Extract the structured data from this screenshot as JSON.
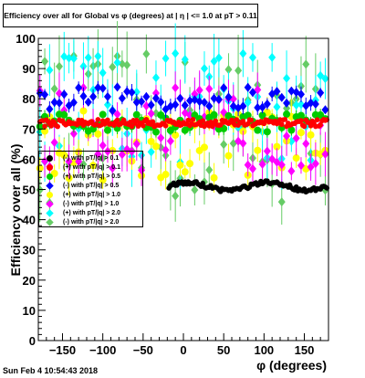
{
  "title": "Efficiency over all for Global vs φ (degrees) at | η | <= 1.0 at pT > 0.11",
  "timestamp": "Sun Feb  4 10:54:43 2018",
  "chart_data": {
    "type": "scatter",
    "title": "Efficiency over all for Global vs φ (degrees) at | η | <= 1.0 at pT > 0.11",
    "xlabel": "φ (degrees)",
    "ylabel": "Efficiency over all (%)",
    "xlim": [
      -180,
      180
    ],
    "ylim": [
      0,
      100
    ],
    "xticks": [
      -150,
      -100,
      -50,
      0,
      50,
      100,
      150
    ],
    "yticks": [
      0,
      10,
      20,
      30,
      40,
      50,
      60,
      70,
      80,
      90,
      100
    ],
    "grid": false,
    "legend_position": "left-middle",
    "series": [
      {
        "name": "(-) with pT/|q| > 0.1",
        "color": "#000000",
        "marker": "circle",
        "band": [
          -20,
          180
        ],
        "level": 51,
        "spread": 1.5,
        "err": 0.5
      },
      {
        "name": "(+) with pT/|q| > 0.1",
        "color": "#ff0000",
        "marker": "circle",
        "band": [
          -180,
          180
        ],
        "level": 72,
        "spread": 1.2,
        "err": 0.5
      },
      {
        "name": "(+) with pT/|q| > 0.5",
        "color": "#00cc00",
        "marker": "circle",
        "band": [
          -180,
          180
        ],
        "level": 72,
        "spread": 3,
        "err": 1.5
      },
      {
        "name": "(-) with pT/|q| > 0.5",
        "color": "#0000ff",
        "marker": "diamond",
        "band": [
          -180,
          180
        ],
        "level": 80,
        "spread": 4,
        "err": 2
      },
      {
        "name": "(+) with pT/|q| > 1.0",
        "color": "#ffff00",
        "marker": "circle",
        "band": [
          -180,
          180
        ],
        "level": 65,
        "spread": 12,
        "err": 4
      },
      {
        "name": "(-) with pT/|q| > 1.0",
        "color": "#ff00ff",
        "marker": "diamond",
        "band": [
          -180,
          180
        ],
        "level": 70,
        "spread": 14,
        "err": 5
      },
      {
        "name": "(+) with pT/|q| > 2.0",
        "color": "#00ffff",
        "marker": "diamond",
        "band": [
          -180,
          180
        ],
        "level": 78,
        "spread": 20,
        "err": 7
      },
      {
        "name": "(-) with pT/|q| > 2.0",
        "color": "#66cc66",
        "marker": "diamond",
        "band": [
          -180,
          180
        ],
        "level": 70,
        "spread": 25,
        "err": 8
      }
    ]
  }
}
